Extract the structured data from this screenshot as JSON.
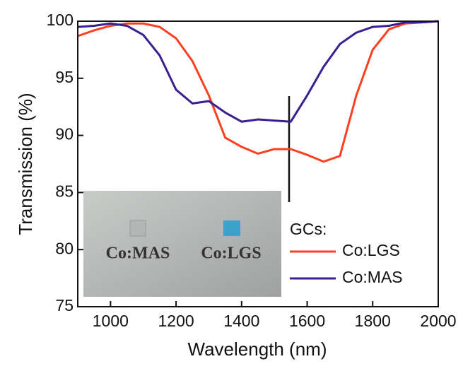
{
  "chart_data": {
    "type": "line",
    "x_label": "Wavelength (nm)",
    "y_label": "Transmission (%)",
    "x": [
      900,
      950,
      1000,
      1050,
      1100,
      1150,
      1200,
      1250,
      1300,
      1350,
      1400,
      1450,
      1500,
      1550,
      1600,
      1650,
      1700,
      1750,
      1800,
      1850,
      1900,
      1950,
      2000
    ],
    "series": [
      {
        "name": "Co:LGS",
        "color": "#ff4020",
        "values": [
          98.7,
          99.2,
          99.6,
          99.8,
          99.8,
          99.5,
          98.5,
          96.5,
          93.5,
          89.8,
          89.0,
          88.4,
          88.8,
          88.8,
          88.3,
          87.7,
          88.2,
          93.5,
          97.5,
          99.3,
          99.8,
          99.9,
          100
        ]
      },
      {
        "name": "Co:MAS",
        "color": "#3a1f8f",
        "values": [
          99.5,
          99.6,
          99.8,
          99.6,
          98.8,
          97.0,
          94.0,
          92.8,
          93.0,
          92.0,
          91.2,
          91.4,
          91.3,
          91.2,
          93.5,
          96.0,
          98.0,
          99.0,
          99.5,
          99.6,
          99.9,
          99.9,
          100
        ]
      }
    ],
    "xlim": [
      900,
      2000
    ],
    "xticks": [
      1000,
      1200,
      1400,
      1600,
      1800,
      2000
    ],
    "ylim": [
      75,
      100
    ],
    "yticks": [
      75,
      80,
      85,
      90,
      95,
      100
    ],
    "legend_title": "GCs:",
    "inset_labels": [
      "Co:MAS",
      "Co:LGS"
    ]
  }
}
